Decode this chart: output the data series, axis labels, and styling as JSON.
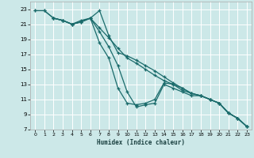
{
  "title": "",
  "xlabel": "Humidex (Indice chaleur)",
  "bg_color": "#cce8e8",
  "grid_color": "#ffffff",
  "line_color": "#1a6b6b",
  "xlim": [
    -0.5,
    23.5
  ],
  "ylim": [
    7,
    24
  ],
  "xticks": [
    0,
    1,
    2,
    3,
    4,
    5,
    6,
    7,
    8,
    9,
    10,
    11,
    12,
    13,
    14,
    15,
    16,
    17,
    18,
    19,
    20,
    21,
    22,
    23
  ],
  "yticks": [
    7,
    9,
    11,
    13,
    15,
    17,
    19,
    21,
    23
  ],
  "line1_x": [
    0,
    1,
    2,
    3,
    4,
    5,
    6,
    7,
    8,
    9,
    10,
    11,
    12,
    13,
    14,
    15,
    16,
    17,
    18,
    19,
    20,
    21,
    22,
    23
  ],
  "line1_y": [
    22.8,
    22.8,
    21.8,
    21.5,
    21.0,
    21.5,
    21.8,
    22.8,
    19.5,
    17.2,
    16.8,
    16.2,
    15.5,
    14.8,
    14.0,
    13.2,
    12.5,
    11.8,
    11.5,
    11.0,
    10.5,
    9.2,
    8.5,
    7.4
  ],
  "line2_x": [
    0,
    1,
    2,
    3,
    4,
    5,
    6,
    7,
    8,
    9,
    10,
    11,
    12,
    13,
    14,
    15,
    16,
    17,
    18,
    19,
    20,
    21,
    22,
    23
  ],
  "line2_y": [
    22.8,
    22.8,
    21.8,
    21.5,
    21.0,
    21.3,
    21.8,
    20.5,
    19.2,
    17.8,
    16.5,
    15.8,
    15.0,
    14.2,
    13.5,
    13.0,
    12.2,
    11.8,
    11.5,
    11.0,
    10.5,
    9.2,
    8.5,
    7.4
  ],
  "line3_x": [
    2,
    3,
    4,
    5,
    6,
    7,
    8,
    9,
    10,
    11,
    12,
    13,
    14,
    15,
    16,
    17,
    18,
    19,
    20,
    21,
    22,
    23
  ],
  "line3_y": [
    21.8,
    21.5,
    21.0,
    21.3,
    21.8,
    18.5,
    16.5,
    12.5,
    10.5,
    10.3,
    10.5,
    11.0,
    13.2,
    13.0,
    12.5,
    11.8,
    11.5,
    11.0,
    10.5,
    9.2,
    8.5,
    7.4
  ],
  "line4_x": [
    2,
    3,
    4,
    5,
    6,
    7,
    8,
    9,
    10,
    11,
    12,
    13,
    14,
    15,
    16,
    17,
    18,
    19,
    20,
    21,
    22,
    23
  ],
  "line4_y": [
    21.8,
    21.5,
    21.0,
    21.3,
    21.8,
    20.0,
    18.0,
    15.5,
    12.0,
    10.0,
    10.3,
    10.5,
    13.0,
    12.5,
    12.0,
    11.5,
    11.5,
    11.0,
    10.5,
    9.2,
    8.5,
    7.4
  ]
}
